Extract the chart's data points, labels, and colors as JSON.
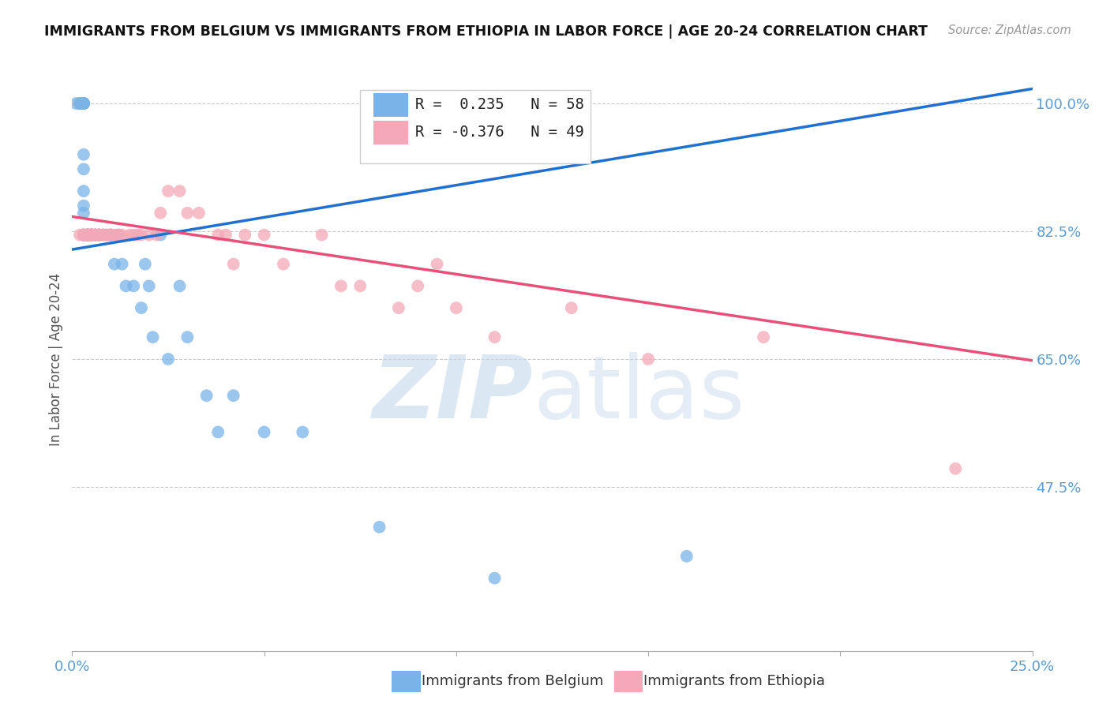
{
  "title": "IMMIGRANTS FROM BELGIUM VS IMMIGRANTS FROM ETHIOPIA IN LABOR FORCE | AGE 20-24 CORRELATION CHART",
  "source": "Source: ZipAtlas.com",
  "ylabel": "In Labor Force | Age 20-24",
  "xlim": [
    0.0,
    0.25
  ],
  "ylim": [
    0.25,
    1.05
  ],
  "yticks_right": [
    1.0,
    0.825,
    0.65,
    0.475
  ],
  "yticks_right_labels": [
    "100.0%",
    "82.5%",
    "65.0%",
    "47.5%"
  ],
  "legend_belgium": "R =  0.235   N = 58",
  "legend_ethiopia": "R = -0.376   N = 49",
  "legend_label_belgium": "Immigrants from Belgium",
  "legend_label_ethiopia": "Immigrants from Ethiopia",
  "color_belgium": "#7ab3e8",
  "color_ethiopia": "#f4a8b8",
  "color_trendline_belgium": "#2070d0",
  "color_trendline_ethiopia": "#e8507a",
  "color_right_axis": "#5b9bd5",
  "background_color": "#ffffff",
  "belgium_x": [
    0.001,
    0.002,
    0.002,
    0.002,
    0.003,
    0.003,
    0.003,
    0.003,
    0.003,
    0.003,
    0.003,
    0.003,
    0.003,
    0.003,
    0.003,
    0.003,
    0.003,
    0.003,
    0.004,
    0.004,
    0.004,
    0.004,
    0.004,
    0.005,
    0.005,
    0.005,
    0.005,
    0.005,
    0.006,
    0.006,
    0.006,
    0.007,
    0.007,
    0.008,
    0.009,
    0.01,
    0.01,
    0.011,
    0.012,
    0.013,
    0.014,
    0.016,
    0.018,
    0.019,
    0.02,
    0.021,
    0.023,
    0.025,
    0.028,
    0.03,
    0.035,
    0.038,
    0.042,
    0.05,
    0.06,
    0.08,
    0.11,
    0.16
  ],
  "belgium_y": [
    1.0,
    1.0,
    1.0,
    1.0,
    1.0,
    1.0,
    1.0,
    1.0,
    1.0,
    1.0,
    0.93,
    0.91,
    0.88,
    0.86,
    0.85,
    0.82,
    0.82,
    0.82,
    0.82,
    0.82,
    0.82,
    0.82,
    0.82,
    0.82,
    0.82,
    0.82,
    0.82,
    0.82,
    0.82,
    0.82,
    0.82,
    0.82,
    0.82,
    0.82,
    0.82,
    0.82,
    0.82,
    0.78,
    0.82,
    0.78,
    0.75,
    0.75,
    0.72,
    0.78,
    0.75,
    0.68,
    0.82,
    0.65,
    0.75,
    0.68,
    0.6,
    0.55,
    0.6,
    0.55,
    0.55,
    0.42,
    0.35,
    0.38
  ],
  "ethiopia_x": [
    0.002,
    0.003,
    0.003,
    0.004,
    0.004,
    0.005,
    0.005,
    0.006,
    0.006,
    0.007,
    0.007,
    0.008,
    0.008,
    0.009,
    0.01,
    0.01,
    0.011,
    0.012,
    0.012,
    0.013,
    0.015,
    0.016,
    0.017,
    0.018,
    0.02,
    0.022,
    0.023,
    0.025,
    0.028,
    0.03,
    0.033,
    0.038,
    0.04,
    0.042,
    0.045,
    0.05,
    0.055,
    0.065,
    0.07,
    0.075,
    0.085,
    0.09,
    0.095,
    0.1,
    0.11,
    0.13,
    0.15,
    0.18,
    0.23
  ],
  "ethiopia_y": [
    0.82,
    0.82,
    0.82,
    0.82,
    0.82,
    0.82,
    0.82,
    0.82,
    0.82,
    0.82,
    0.82,
    0.82,
    0.82,
    0.82,
    0.82,
    0.82,
    0.82,
    0.82,
    0.82,
    0.82,
    0.82,
    0.82,
    0.82,
    0.82,
    0.82,
    0.82,
    0.85,
    0.88,
    0.88,
    0.85,
    0.85,
    0.82,
    0.82,
    0.78,
    0.82,
    0.82,
    0.78,
    0.82,
    0.75,
    0.75,
    0.72,
    0.75,
    0.78,
    0.72,
    0.68,
    0.72,
    0.65,
    0.68,
    0.5
  ],
  "bel_trend_x0": 0.0,
  "bel_trend_y0": 0.8,
  "bel_trend_x1": 0.25,
  "bel_trend_y1": 1.02,
  "eth_trend_x0": 0.0,
  "eth_trend_y0": 0.845,
  "eth_trend_x1": 0.25,
  "eth_trend_y1": 0.648
}
